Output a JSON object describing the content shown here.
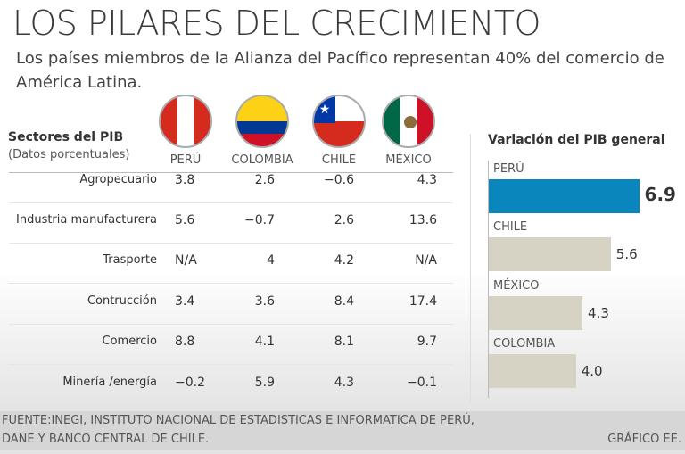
{
  "title": "LOS PILARES DEL CRECIMIENTO",
  "subtitle": "Los países miembros de la Alianza del Pacífico representan 40% del comercio de América Latina.",
  "table": {
    "heading": "Sectores del PIB",
    "subheading": "(Datos porcentuales)",
    "columns": [
      "PERÚ",
      "COLOMBIA",
      "CHILE",
      "MÉXICO"
    ],
    "rows": [
      {
        "label": "Agropecuario",
        "values": [
          "3.8",
          "2.6",
          "−0.6",
          "4.3"
        ]
      },
      {
        "label": "Industria manufacturera",
        "values": [
          "5.6",
          "−0.7",
          "2.6",
          "13.6"
        ]
      },
      {
        "label": "Trasporte",
        "values": [
          "N/A",
          "4",
          "4.2",
          "N/A"
        ]
      },
      {
        "label": "Contrucción",
        "values": [
          "3.4",
          "3.6",
          "8.4",
          "17.4"
        ]
      },
      {
        "label": "Comercio",
        "values": [
          "8.8",
          "4.1",
          "8.1",
          "9.7"
        ]
      },
      {
        "label": "Minería /energía",
        "values": [
          "−0.2",
          "5.9",
          "4.3",
          "−0.1"
        ]
      }
    ]
  },
  "chart_data": {
    "type": "bar",
    "orientation": "horizontal",
    "title": "Variación del PIB general",
    "categories": [
      "PERÚ",
      "CHILE",
      "MÉXICO",
      "COLOMBIA"
    ],
    "values": [
      6.9,
      5.6,
      4.3,
      4.0
    ],
    "labels": [
      "6.9",
      "5.6",
      "4.3",
      "4.0"
    ],
    "colors": [
      "#0a86bc",
      "#d6d2c4",
      "#d6d2c4",
      "#d6d2c4"
    ],
    "xlim": [
      0,
      7
    ]
  },
  "footer": {
    "source_line1": "FUENTE:INEGI, INSTITUTO NACIONAL DE ESTADISTICAS E INFORMATICA DE PERÚ,",
    "source_line2": "DANE Y BANCO CENTRAL DE CHILE.",
    "credit": "GRÁFICO EE."
  }
}
